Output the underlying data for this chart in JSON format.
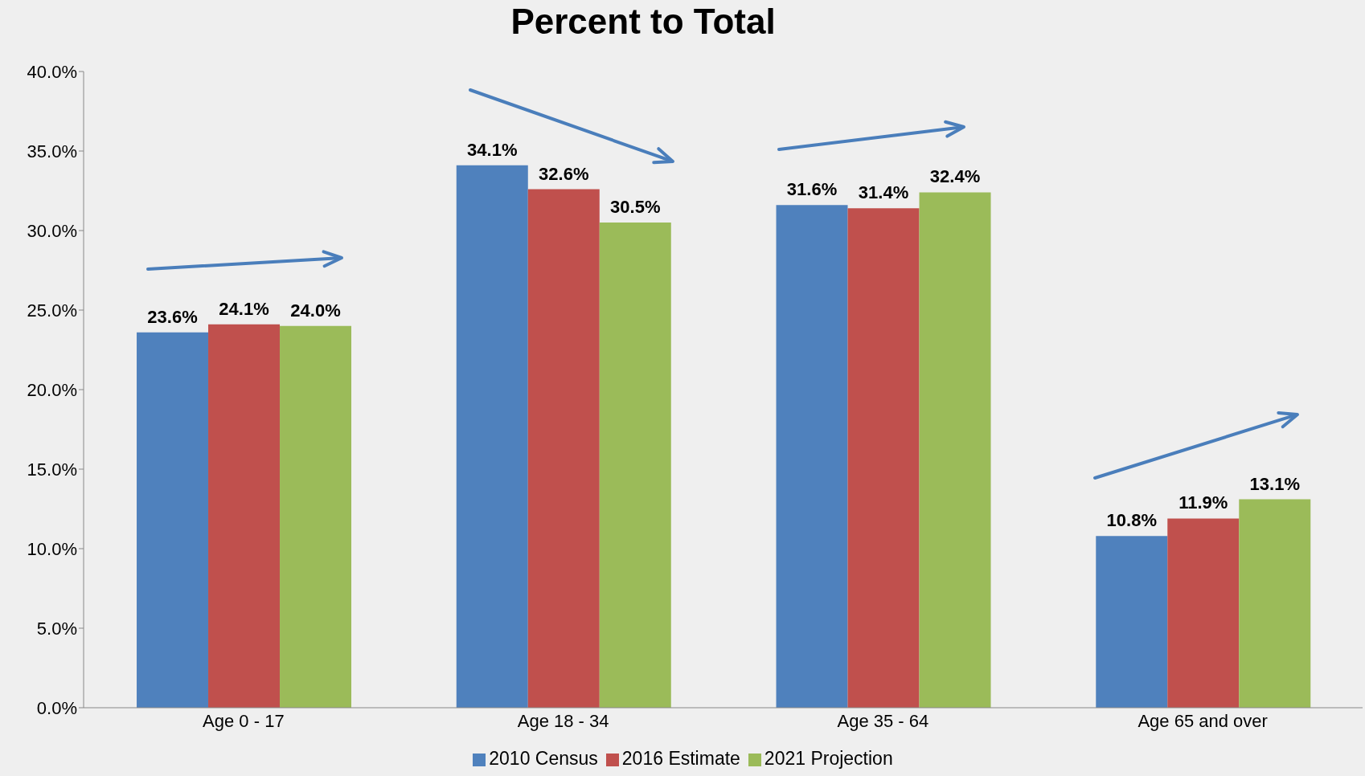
{
  "chart_data": {
    "type": "bar",
    "title": "Percent to Total",
    "categories": [
      "Age 0 - 17",
      "Age 18 - 34",
      "Age 35 - 64",
      "Age 65 and over"
    ],
    "series": [
      {
        "name": "2010 Census",
        "color": "#4f81bd",
        "values": [
          23.6,
          34.1,
          31.6,
          10.8
        ],
        "value_labels": [
          "23.6%",
          "34.1%",
          "31.6%",
          "10.8%"
        ]
      },
      {
        "name": "2016 Estimate",
        "color": "#c0504d",
        "values": [
          24.1,
          32.6,
          31.4,
          11.9
        ],
        "value_labels": [
          "24.1%",
          "32.6%",
          "31.4%",
          "11.9%"
        ]
      },
      {
        "name": "2021 Projection",
        "color": "#9bbb59",
        "values": [
          24.0,
          30.5,
          32.4,
          13.1
        ],
        "value_labels": [
          "24.0%",
          "30.5%",
          "32.4%",
          "13.1%"
        ]
      }
    ],
    "ylim": [
      0,
      40
    ],
    "yticks": [
      {
        "value": 0,
        "label": "0.0%"
      },
      {
        "value": 5,
        "label": "5.0%"
      },
      {
        "value": 10,
        "label": "10.0%"
      },
      {
        "value": 15,
        "label": "15.0%"
      },
      {
        "value": 20,
        "label": "20.0%"
      },
      {
        "value": 25,
        "label": "25.0%"
      },
      {
        "value": 30,
        "label": "30.0%"
      },
      {
        "value": 35,
        "label": "35.0%"
      },
      {
        "value": 40,
        "label": "40.0%"
      }
    ],
    "grid": false,
    "legend": "bottom"
  }
}
